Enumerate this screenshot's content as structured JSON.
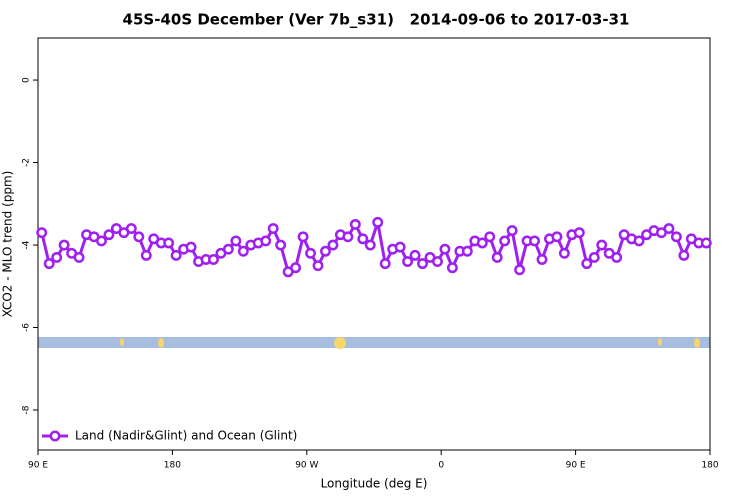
{
  "chart_data": {
    "type": "line",
    "title": "45S-40S December (Ver 7b_s31)   2014-09-06 to 2017-03-31",
    "xlabel": "Longitude (deg E)",
    "ylabel": "XCO2 - MLO trend (ppm)",
    "xlim": [
      90,
      540
    ],
    "ylim": [
      -8.97,
      1.02
    ],
    "xticks": [
      {
        "value": 90,
        "label": "90 E"
      },
      180,
      {
        "value": 270,
        "label": "90 W"
      },
      {
        "value": 360,
        "label": "0"
      },
      {
        "value": 450,
        "label": "90 E"
      },
      {
        "value": 540,
        "label": "180"
      }
    ],
    "yticks": [
      0,
      -2,
      -4,
      -6,
      -8
    ],
    "legend": "bottomleft",
    "x": [
      92.5,
      97.5,
      102.5,
      107.5,
      112.5,
      117.5,
      122.5,
      127.5,
      132.5,
      137.5,
      142.5,
      147.5,
      152.5,
      157.5,
      162.5,
      167.5,
      172.5,
      177.5,
      182.5,
      187.5,
      192.5,
      197.5,
      202.5,
      207.5,
      212.5,
      217.5,
      222.5,
      227.5,
      232.5,
      237.5,
      242.5,
      247.5,
      252.5,
      257.5,
      262.5,
      267.5,
      272.5,
      277.5,
      282.5,
      287.5,
      292.5,
      297.5,
      302.5,
      307.5,
      312.5,
      317.5,
      322.5,
      327.5,
      332.5,
      337.5,
      342.5,
      347.5,
      352.5,
      357.5,
      362.5,
      367.5,
      372.5,
      377.5,
      382.5,
      387.5,
      392.5,
      397.5,
      402.5,
      407.5,
      412.5,
      417.5,
      422.5,
      427.5,
      432.5,
      437.5,
      442.5,
      447.5,
      452.5,
      457.5,
      462.5,
      467.5,
      472.5,
      477.5,
      482.5,
      487.5,
      492.5,
      497.5,
      502.5,
      507.5,
      512.5,
      517.5,
      522.5,
      527.5,
      532.5,
      537.5
    ],
    "series": [
      {
        "name": "Land (Nadir&Glint) and Ocean (Glint)",
        "color": "#a020f0",
        "values": [
          -3.7,
          -4.45,
          -4.3,
          -4.0,
          -4.2,
          -4.3,
          -3.75,
          -3.8,
          -3.9,
          -3.75,
          -3.6,
          -3.7,
          -3.6,
          -3.8,
          -4.25,
          -3.85,
          -3.95,
          -3.95,
          -4.25,
          -4.1,
          -4.05,
          -4.4,
          -4.35,
          -4.35,
          -4.2,
          -4.1,
          -3.9,
          -4.15,
          -4.0,
          -3.95,
          -3.9,
          -3.6,
          -4.0,
          -4.65,
          -4.55,
          -3.8,
          -4.2,
          -4.5,
          -4.15,
          -4.0,
          -3.75,
          -3.8,
          -3.5,
          -3.85,
          -4.0,
          -3.45,
          -4.45,
          -4.1,
          -4.05,
          -4.4,
          -4.25,
          -4.45,
          -4.3,
          -4.4,
          -4.1,
          -4.55,
          -4.15,
          -4.15,
          -3.9,
          -3.95,
          -3.8,
          -4.3,
          -3.9,
          -3.65,
          -4.6,
          -3.9,
          -3.9,
          -4.35,
          -3.85,
          -3.8,
          -4.2,
          -3.75,
          -3.7,
          -4.45,
          -4.3,
          -4.0,
          -4.2,
          -4.3,
          -3.75,
          -3.85,
          -3.9,
          -3.75,
          -3.65,
          -3.7,
          -3.6,
          -3.8,
          -4.25,
          -3.85,
          -3.95,
          -3.95
        ]
      }
    ]
  }
}
